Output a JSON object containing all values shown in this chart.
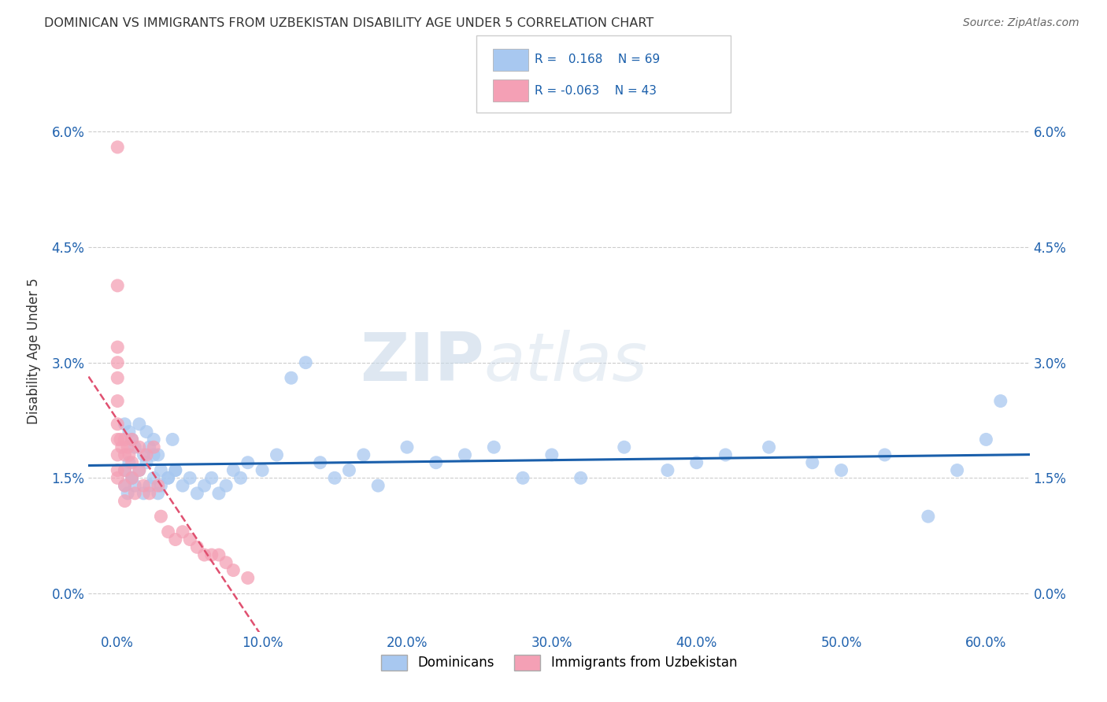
{
  "title": "DOMINICAN VS IMMIGRANTS FROM UZBEKISTAN DISABILITY AGE UNDER 5 CORRELATION CHART",
  "source": "Source: ZipAtlas.com",
  "xlabel_ticks": [
    "0.0%",
    "10.0%",
    "20.0%",
    "30.0%",
    "40.0%",
    "50.0%",
    "60.0%"
  ],
  "xlabel_vals": [
    0.0,
    0.1,
    0.2,
    0.3,
    0.4,
    0.5,
    0.6
  ],
  "ylabel_ticks": [
    "0.0%",
    "1.5%",
    "3.0%",
    "4.5%",
    "6.0%"
  ],
  "ylabel_vals": [
    0.0,
    0.015,
    0.03,
    0.045,
    0.06
  ],
  "ylim": [
    -0.005,
    0.068
  ],
  "xlim": [
    -0.02,
    0.63
  ],
  "blue_R": 0.168,
  "blue_N": 69,
  "pink_R": -0.063,
  "pink_N": 43,
  "blue_color": "#A8C8F0",
  "pink_color": "#F4A0B5",
  "blue_line_color": "#1A5FAB",
  "pink_line_color": "#E05070",
  "watermark_zip": "ZIP",
  "watermark_atlas": "atlas",
  "ylabel": "Disability Age Under 5",
  "legend_blue_label": "Dominicans",
  "legend_pink_label": "Immigrants from Uzbekistan",
  "blue_scatter_x": [
    0.005,
    0.008,
    0.01,
    0.012,
    0.015,
    0.018,
    0.02,
    0.022,
    0.025,
    0.028,
    0.005,
    0.008,
    0.01,
    0.015,
    0.02,
    0.025,
    0.03,
    0.035,
    0.038,
    0.04,
    0.005,
    0.007,
    0.01,
    0.012,
    0.018,
    0.022,
    0.025,
    0.028,
    0.03,
    0.035,
    0.04,
    0.045,
    0.05,
    0.055,
    0.06,
    0.065,
    0.07,
    0.075,
    0.08,
    0.085,
    0.09,
    0.1,
    0.11,
    0.12,
    0.13,
    0.14,
    0.15,
    0.16,
    0.17,
    0.18,
    0.2,
    0.22,
    0.24,
    0.26,
    0.28,
    0.3,
    0.32,
    0.35,
    0.38,
    0.4,
    0.42,
    0.45,
    0.48,
    0.5,
    0.53,
    0.56,
    0.58,
    0.6,
    0.61
  ],
  "blue_scatter_y": [
    0.022,
    0.021,
    0.02,
    0.019,
    0.022,
    0.018,
    0.021,
    0.019,
    0.02,
    0.018,
    0.016,
    0.017,
    0.015,
    0.016,
    0.017,
    0.018,
    0.016,
    0.015,
    0.02,
    0.016,
    0.014,
    0.013,
    0.015,
    0.014,
    0.013,
    0.014,
    0.015,
    0.013,
    0.014,
    0.015,
    0.016,
    0.014,
    0.015,
    0.013,
    0.014,
    0.015,
    0.013,
    0.014,
    0.016,
    0.015,
    0.017,
    0.016,
    0.018,
    0.028,
    0.03,
    0.017,
    0.015,
    0.016,
    0.018,
    0.014,
    0.019,
    0.017,
    0.018,
    0.019,
    0.015,
    0.018,
    0.015,
    0.019,
    0.016,
    0.017,
    0.018,
    0.019,
    0.017,
    0.016,
    0.018,
    0.01,
    0.016,
    0.02,
    0.025
  ],
  "pink_scatter_x": [
    0.0,
    0.0,
    0.0,
    0.0,
    0.0,
    0.0,
    0.0,
    0.0,
    0.0,
    0.0,
    0.0,
    0.002,
    0.003,
    0.005,
    0.005,
    0.005,
    0.005,
    0.005,
    0.007,
    0.008,
    0.01,
    0.01,
    0.01,
    0.012,
    0.015,
    0.015,
    0.018,
    0.02,
    0.022,
    0.025,
    0.028,
    0.03,
    0.035,
    0.04,
    0.045,
    0.05,
    0.055,
    0.06,
    0.065,
    0.07,
    0.075,
    0.08,
    0.09
  ],
  "pink_scatter_y": [
    0.058,
    0.04,
    0.032,
    0.03,
    0.028,
    0.025,
    0.022,
    0.02,
    0.018,
    0.016,
    0.015,
    0.02,
    0.019,
    0.02,
    0.018,
    0.016,
    0.014,
    0.012,
    0.019,
    0.018,
    0.02,
    0.017,
    0.015,
    0.013,
    0.019,
    0.016,
    0.014,
    0.018,
    0.013,
    0.019,
    0.014,
    0.01,
    0.008,
    0.007,
    0.008,
    0.007,
    0.006,
    0.005,
    0.005,
    0.005,
    0.004,
    0.003,
    0.002
  ]
}
